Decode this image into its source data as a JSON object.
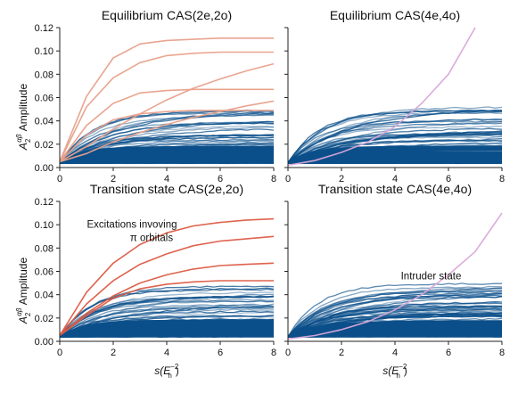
{
  "figure": {
    "ylabel_main": "A",
    "ylabel_sub": "2",
    "ylabel_sup": "αβ",
    "ylabel_suffix": " Amplitude",
    "xlabel_prefix": "s(",
    "xlabel_main": "E",
    "xlabel_sub": "h",
    "xlabel_sup": "−2",
    "xlabel_suffix": ")"
  },
  "colors": {
    "blue": "#0b4f8a",
    "salmon": "#e8a08a",
    "red": "#dc5b45",
    "violet": "#d9a6d8",
    "axis": "#222222"
  },
  "chart_data": [
    {
      "type": "line",
      "title": "Equilibrium CAS(2e,2o)",
      "xlim": [
        0,
        8
      ],
      "ylim": [
        0,
        0.12
      ],
      "xticks": [
        "0",
        "2",
        "4",
        "6",
        "8"
      ],
      "yticks": [
        "0.00",
        "0.02",
        "0.04",
        "0.06",
        "0.08",
        "0.10",
        "0.12"
      ],
      "grid": false,
      "highlight_color": "salmon",
      "blue_band": {
        "count": 60,
        "min_plateau": 0.004,
        "max_plateau": 0.05,
        "min_rate": 0.35,
        "max_rate": 0.9
      },
      "x": [
        0,
        1,
        2,
        3,
        4,
        5,
        6,
        7,
        8
      ],
      "series": [
        {
          "values": [
            0.005,
            0.061,
            0.094,
            0.106,
            0.109,
            0.11,
            0.111,
            0.111,
            0.111
          ]
        },
        {
          "values": [
            0.005,
            0.052,
            0.077,
            0.09,
            0.096,
            0.098,
            0.099,
            0.099,
            0.099
          ]
        },
        {
          "values": [
            0.005,
            0.018,
            0.033,
            0.046,
            0.058,
            0.068,
            0.076,
            0.083,
            0.089
          ]
        },
        {
          "values": [
            0.005,
            0.036,
            0.055,
            0.064,
            0.066,
            0.067,
            0.067,
            0.067,
            0.067
          ]
        },
        {
          "values": [
            0.005,
            0.012,
            0.022,
            0.03,
            0.037,
            0.043,
            0.048,
            0.053,
            0.057
          ]
        },
        {
          "values": [
            0.005,
            0.028,
            0.041,
            0.046,
            0.048,
            0.049,
            0.049,
            0.049,
            0.049
          ]
        }
      ]
    },
    {
      "type": "line",
      "title": "Equilibrium CAS(4e,4o)",
      "xlim": [
        0,
        8
      ],
      "ylim": [
        0,
        0.12
      ],
      "xticks": [
        "0",
        "2",
        "4",
        "6",
        "8"
      ],
      "yticks": [],
      "grid": false,
      "highlight_color": "violet",
      "blue_band": {
        "count": 70,
        "min_plateau": 0.004,
        "max_plateau": 0.052,
        "min_rate": 0.35,
        "max_rate": 0.9
      },
      "x": [
        0,
        1,
        2,
        3,
        4,
        5,
        6,
        7
      ],
      "series": [
        {
          "values": [
            0.002,
            0.006,
            0.013,
            0.022,
            0.035,
            0.055,
            0.08,
            0.12
          ]
        }
      ]
    },
    {
      "type": "line",
      "title": "Transition state CAS(2e,2o)",
      "xlim": [
        0,
        8
      ],
      "ylim": [
        0,
        0.12
      ],
      "xticks": [
        "0",
        "2",
        "4",
        "6",
        "8"
      ],
      "yticks": [
        "0.00",
        "0.02",
        "0.04",
        "0.06",
        "0.08",
        "0.10",
        "0.12"
      ],
      "grid": false,
      "highlight_color": "red",
      "blue_band": {
        "count": 60,
        "min_plateau": 0.004,
        "max_plateau": 0.05,
        "min_rate": 0.35,
        "max_rate": 0.9
      },
      "annotation": [
        "Excitations invoving",
        "π orbitals"
      ],
      "annotation_anchor": [
        2.7,
        0.0975
      ],
      "x": [
        0,
        1,
        2,
        3,
        4,
        5,
        6,
        7,
        8
      ],
      "series": [
        {
          "values": [
            0.005,
            0.042,
            0.067,
            0.083,
            0.093,
            0.099,
            0.102,
            0.104,
            0.105
          ]
        },
        {
          "values": [
            0.005,
            0.032,
            0.052,
            0.066,
            0.075,
            0.082,
            0.086,
            0.088,
            0.09
          ]
        },
        {
          "values": [
            0.005,
            0.024,
            0.039,
            0.05,
            0.057,
            0.062,
            0.065,
            0.066,
            0.067
          ]
        },
        {
          "values": [
            0.005,
            0.022,
            0.037,
            0.045,
            0.049,
            0.051,
            0.052,
            0.052,
            0.052
          ]
        }
      ]
    },
    {
      "type": "line",
      "title": "Transition state CAS(4e,4o)",
      "xlim": [
        0,
        8
      ],
      "ylim": [
        0,
        0.12
      ],
      "xticks": [
        "0",
        "2",
        "4",
        "6",
        "8"
      ],
      "yticks": [],
      "grid": false,
      "highlight_color": "violet",
      "blue_band": {
        "count": 70,
        "min_plateau": 0.004,
        "max_plateau": 0.052,
        "min_rate": 0.35,
        "max_rate": 0.9
      },
      "annotation": [
        "Intruder state"
      ],
      "annotation_anchor": [
        5.35,
        0.053
      ],
      "x": [
        0,
        1,
        2,
        3,
        4,
        5,
        6,
        7,
        8
      ],
      "series": [
        {
          "values": [
            0.002,
            0.005,
            0.01,
            0.017,
            0.027,
            0.04,
            0.057,
            0.077,
            0.11
          ]
        }
      ]
    }
  ]
}
